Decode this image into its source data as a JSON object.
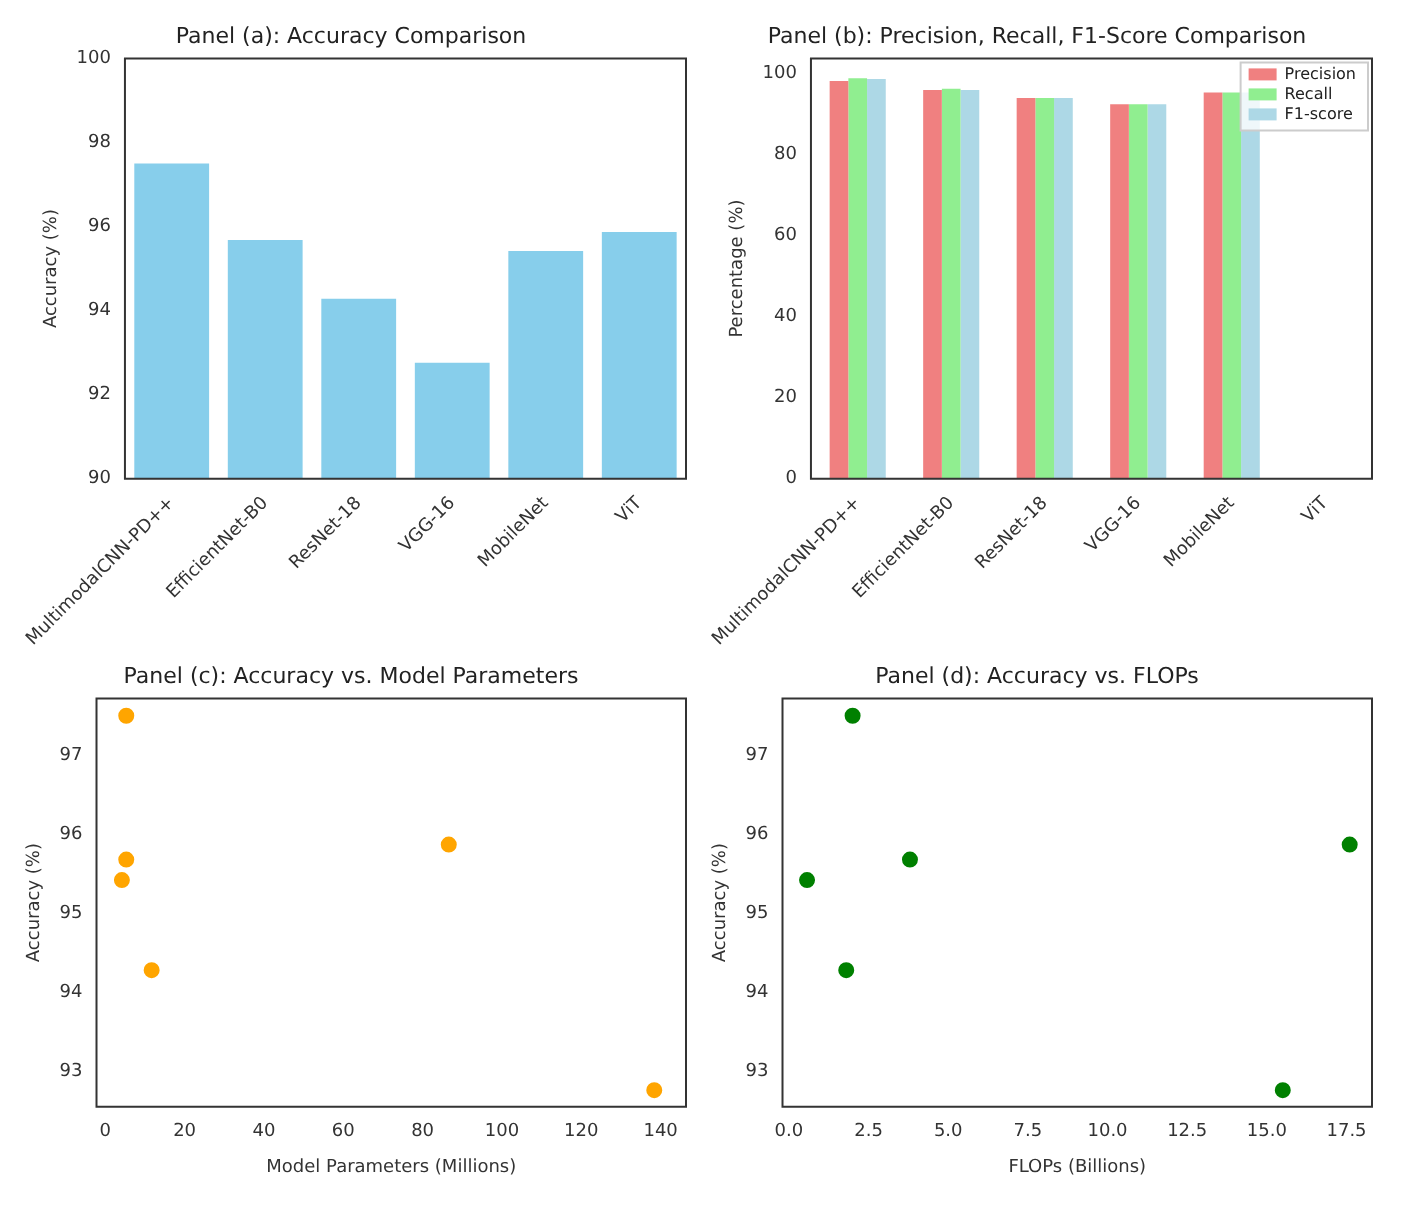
{
  "chart_data": [
    {
      "type": "bar",
      "title": "Panel (a): Accuracy Comparison",
      "ylabel": "Accuracy (%)",
      "categories": [
        "MultimodalCNN-PD++",
        "EfficientNet-B0",
        "ResNet-18",
        "VGG-16",
        "MobileNet",
        "ViT"
      ],
      "values": [
        97.5,
        95.68,
        94.28,
        92.76,
        95.42,
        95.87
      ],
      "color": "#87ceeb",
      "ylim": [
        90,
        100
      ],
      "yticks": [
        90,
        92,
        94,
        96,
        98,
        100
      ],
      "grid": false,
      "legend": false
    },
    {
      "type": "bar",
      "title": "Panel (b): Precision, Recall, F1-Score Comparison",
      "ylabel": "Percentage (%)",
      "categories": [
        "MultimodalCNN-PD++",
        "EfficientNet-B0",
        "ResNet-18",
        "VGG-16",
        "MobileNet",
        "ViT"
      ],
      "series": [
        {
          "name": "Precision",
          "color": "#f08080",
          "values": [
            98.2,
            96.0,
            94.0,
            92.5,
            95.4,
            null
          ]
        },
        {
          "name": "Recall",
          "color": "#90ee90",
          "values": [
            98.9,
            96.3,
            94.0,
            92.5,
            95.4,
            null
          ]
        },
        {
          "name": "F1-score",
          "color": "#add8e6",
          "values": [
            98.7,
            96.0,
            94.0,
            92.5,
            95.4,
            null
          ]
        }
      ],
      "ylim": [
        0,
        103.8
      ],
      "yticks": [
        0,
        20,
        40,
        60,
        80,
        100
      ],
      "grid": false,
      "legend": "top right"
    },
    {
      "type": "scatter",
      "title": "Panel (c): Accuracy vs. Model Parameters",
      "xlabel": "Model Parameters (Millions)",
      "ylabel": "Accuracy (%)",
      "x": [
        5.3,
        5.3,
        11.7,
        138.4,
        4.2,
        86.6
      ],
      "values": [
        97.5,
        95.68,
        94.28,
        92.76,
        95.42,
        95.87
      ],
      "color": "#ffa500",
      "xlim": [
        -2.2,
        146.4
      ],
      "xticks": [
        0,
        20,
        40,
        60,
        80,
        100,
        120,
        140
      ],
      "ylim": [
        92.55,
        97.72
      ],
      "yticks": [
        93,
        94,
        95,
        96,
        97
      ],
      "grid": false,
      "legend": false,
      "marker": "circle"
    },
    {
      "type": "scatter",
      "title": "Panel (d): Accuracy vs. FLOPs",
      "xlabel": "FLOPs (Billions)",
      "ylabel": "Accuracy (%)",
      "x": [
        2.0,
        3.8,
        1.8,
        15.5,
        0.57,
        17.6
      ],
      "values": [
        97.5,
        95.68,
        94.28,
        92.76,
        95.42,
        95.87
      ],
      "color": "#008000",
      "xlim": [
        -0.2,
        18.3
      ],
      "xticks": [
        {
          "value": 0,
          "label": "0.0"
        },
        {
          "value": 2.5,
          "label": "2.5"
        },
        {
          "value": 5,
          "label": "5.0"
        },
        {
          "value": 7.5,
          "label": "7.5"
        },
        {
          "value": 10,
          "label": "10.0"
        },
        {
          "value": 12.5,
          "label": "12.5"
        },
        {
          "value": 15,
          "label": "15.0"
        },
        {
          "value": 17.5,
          "label": "17.5"
        }
      ],
      "ylim": [
        92.55,
        97.72
      ],
      "yticks": [
        93,
        94,
        95,
        96,
        97
      ],
      "grid": false,
      "legend": false,
      "marker": "circle"
    }
  ]
}
